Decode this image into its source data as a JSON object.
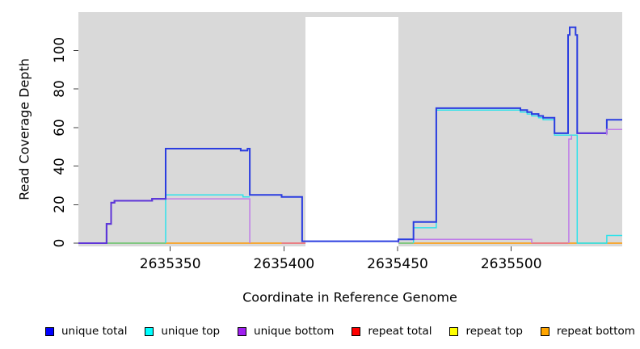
{
  "chart_data": {
    "type": "line",
    "subtype": "step-coverage",
    "title": "",
    "xlabel": "Coordinate in Reference Genome",
    "ylabel": "Read Coverage Depth",
    "xlim": [
      2635309.6,
      2635548.8
    ],
    "ylim": [
      0,
      119.8
    ],
    "x_ticks": [
      2635350,
      2635400,
      2635450,
      2635500
    ],
    "y_ticks": [
      0,
      20,
      40,
      60,
      80,
      100
    ],
    "grid": false,
    "legend_position": "bottom",
    "series": [
      {
        "name": "unique total",
        "color": "#0000FF",
        "points": [
          [
            2635310,
            0
          ],
          [
            2635322,
            10
          ],
          [
            2635324,
            21
          ],
          [
            2635326,
            22
          ],
          [
            2635342,
            23
          ],
          [
            2635348,
            49
          ],
          [
            2635381,
            48
          ],
          [
            2635384,
            49
          ],
          [
            2635385,
            25
          ],
          [
            2635399,
            24
          ],
          [
            2635408,
            1
          ],
          [
            2635450,
            2
          ],
          [
            2635457,
            11
          ],
          [
            2635467,
            70
          ],
          [
            2635504,
            69
          ],
          [
            2635507,
            68
          ],
          [
            2635509,
            67
          ],
          [
            2635512,
            66
          ],
          [
            2635514,
            65
          ],
          [
            2635519,
            57
          ],
          [
            2635525,
            112
          ],
          [
            2635529,
            57
          ],
          [
            2635542,
            64
          ],
          [
            2635549,
            64
          ]
        ]
      },
      {
        "name": "unique top",
        "color": "#00FFFF",
        "points": [
          [
            2635310,
            0
          ],
          [
            2635348,
            25
          ],
          [
            2635382,
            24
          ],
          [
            2635408,
            1
          ],
          [
            2635457,
            8
          ],
          [
            2635467,
            69
          ],
          [
            2635504,
            68
          ],
          [
            2635507,
            67
          ],
          [
            2635509,
            66
          ],
          [
            2635512,
            65
          ],
          [
            2635514,
            64
          ],
          [
            2635519,
            56
          ],
          [
            2635529,
            0
          ],
          [
            2635542,
            4
          ],
          [
            2635549,
            4
          ]
        ]
      },
      {
        "name": "unique bottom",
        "color": "#A020F0",
        "points": [
          [
            2635310,
            0
          ],
          [
            2635322,
            10
          ],
          [
            2635324,
            21
          ],
          [
            2635326,
            22
          ],
          [
            2635342,
            23
          ],
          [
            2635385,
            0
          ],
          [
            2635450,
            2
          ],
          [
            2635509,
            0
          ],
          [
            2635525,
            56
          ],
          [
            2635542,
            59
          ],
          [
            2635549,
            59
          ]
        ]
      },
      {
        "name": "repeat total",
        "color": "#FF0000",
        "points": [
          [
            2635310,
            0
          ],
          [
            2635549,
            0
          ]
        ]
      },
      {
        "name": "repeat top",
        "color": "#FFFF00",
        "points": [
          [
            2635310,
            0
          ],
          [
            2635549,
            0
          ]
        ]
      },
      {
        "name": "repeat bottom",
        "color": "#FFA500",
        "points": [
          [
            2635310,
            0
          ],
          [
            2635549,
            0
          ]
        ]
      }
    ]
  },
  "render": {
    "panel_shade_color": "#d9d9d9",
    "gap_region": [
      2635409.5,
      2635450.4
    ],
    "lines": [
      {
        "name": "baseline-green-left",
        "color": "#62c162",
        "w": 1.4,
        "pts": [
          [
            2635322,
            0
          ],
          [
            2635348,
            0
          ]
        ]
      },
      {
        "name": "baseline-orange-1",
        "color": "#ff9800",
        "w": 1.5,
        "pts": [
          [
            2635348,
            0
          ],
          [
            2635399,
            0
          ]
        ]
      },
      {
        "name": "baseline-red-1",
        "color": "#ef6168",
        "w": 1.5,
        "pts": [
          [
            2635399,
            0
          ],
          [
            2635409.5,
            0
          ]
        ]
      },
      {
        "name": "baseline-green-2",
        "color": "#62c162",
        "w": 1.4,
        "pts": [
          [
            2635450.4,
            0
          ],
          [
            2635457,
            0
          ]
        ]
      },
      {
        "name": "baseline-orange-2",
        "color": "#ff9800",
        "w": 1.5,
        "pts": [
          [
            2635457,
            0
          ],
          [
            2635509,
            0
          ]
        ]
      },
      {
        "name": "baseline-red-2",
        "color": "#ef6168",
        "w": 1.5,
        "pts": [
          [
            2635509,
            0
          ],
          [
            2635525,
            0
          ]
        ]
      },
      {
        "name": "baseline-orange-3",
        "color": "#ff9800",
        "w": 1.5,
        "pts": [
          [
            2635525,
            0
          ],
          [
            2635529,
            0
          ]
        ]
      },
      {
        "name": "baseline-green-3",
        "color": "#62c162",
        "w": 1.4,
        "pts": [
          [
            2635529,
            0
          ],
          [
            2635542,
            0
          ]
        ]
      },
      {
        "name": "baseline-orange-4",
        "color": "#ff9800",
        "w": 1.5,
        "pts": [
          [
            2635542,
            0
          ],
          [
            2635548.8,
            0
          ]
        ]
      },
      {
        "name": "unique-top-left",
        "color": "#2fe2ea",
        "w": 1.5,
        "pts": [
          [
            2635348,
            0
          ],
          [
            2635348,
            25
          ],
          [
            2635382,
            25
          ],
          [
            2635382,
            24
          ],
          [
            2635385,
            24
          ]
        ]
      },
      {
        "name": "unique-bottom-left",
        "color": "#bf7de8",
        "w": 1.5,
        "pts": [
          [
            2635348,
            23
          ],
          [
            2635385,
            23
          ],
          [
            2635385,
            0
          ]
        ]
      },
      {
        "name": "unique-bottom-mid",
        "color": "#bf7de8",
        "w": 1.5,
        "pts": [
          [
            2635450.4,
            0
          ],
          [
            2635450.4,
            2
          ],
          [
            2635509,
            2
          ],
          [
            2635509,
            0
          ]
        ]
      },
      {
        "name": "unique-top-right",
        "color": "#2fe2ea",
        "w": 1.5,
        "pts": [
          [
            2635457,
            0
          ],
          [
            2635457,
            8
          ],
          [
            2635467,
            8
          ],
          [
            2635467,
            69
          ],
          [
            2635504,
            69
          ],
          [
            2635504,
            68
          ],
          [
            2635507,
            68
          ],
          [
            2635507,
            67
          ],
          [
            2635509,
            67
          ],
          [
            2635509,
            66
          ],
          [
            2635512,
            66
          ],
          [
            2635512,
            65
          ],
          [
            2635514,
            65
          ],
          [
            2635514,
            64
          ],
          [
            2635519,
            64
          ],
          [
            2635519,
            56
          ],
          [
            2635529,
            56
          ],
          [
            2635529,
            0
          ],
          [
            2635542,
            0
          ],
          [
            2635542,
            4
          ],
          [
            2635548.8,
            4
          ]
        ]
      },
      {
        "name": "unique-bottom-spike",
        "color": "#bf7de8",
        "w": 1.5,
        "pts": [
          [
            2635525.3,
            0
          ],
          [
            2635525.3,
            54
          ],
          [
            2635526.5,
            54
          ],
          [
            2635526.5,
            56
          ]
        ]
      },
      {
        "name": "unique-total-main",
        "color": "#2b3de0",
        "w": 2,
        "pts": [
          [
            2635309.6,
            0
          ],
          [
            2635322,
            0
          ],
          [
            2635322,
            10
          ],
          [
            2635324,
            10
          ],
          [
            2635324,
            21
          ],
          [
            2635325.5,
            21
          ],
          [
            2635325.5,
            22
          ],
          [
            2635342,
            22
          ],
          [
            2635342,
            23
          ],
          [
            2635348,
            23
          ],
          [
            2635348,
            49
          ],
          [
            2635381,
            49
          ],
          [
            2635381,
            48
          ],
          [
            2635384,
            48
          ],
          [
            2635384,
            49
          ],
          [
            2635385,
            49
          ],
          [
            2635385,
            25
          ],
          [
            2635399,
            25
          ],
          [
            2635399,
            24
          ],
          [
            2635408,
            24
          ],
          [
            2635408,
            1
          ],
          [
            2635450.4,
            1
          ],
          [
            2635450.4,
            2
          ],
          [
            2635457,
            2
          ],
          [
            2635457,
            11
          ],
          [
            2635467,
            11
          ],
          [
            2635467,
            70
          ],
          [
            2635504,
            70
          ],
          [
            2635504,
            69
          ],
          [
            2635507,
            69
          ],
          [
            2635507,
            68
          ],
          [
            2635509,
            68
          ],
          [
            2635509,
            67
          ],
          [
            2635512,
            67
          ],
          [
            2635512,
            66
          ],
          [
            2635514,
            66
          ],
          [
            2635514,
            65
          ],
          [
            2635519,
            65
          ],
          [
            2635519,
            57
          ],
          [
            2635525,
            57
          ],
          [
            2635525,
            108
          ],
          [
            2635525.7,
            108
          ],
          [
            2635525.7,
            112
          ],
          [
            2635528.3,
            112
          ],
          [
            2635528.3,
            108
          ],
          [
            2635529,
            108
          ],
          [
            2635529,
            57
          ],
          [
            2635542,
            57
          ],
          [
            2635542,
            64
          ],
          [
            2635548.8,
            64
          ]
        ]
      },
      {
        "name": "blue-purple-overlap-rise",
        "color": "#5f35d8",
        "w": 2,
        "pts": [
          [
            2635309.6,
            0
          ],
          [
            2635322,
            0
          ],
          [
            2635322,
            10
          ],
          [
            2635324,
            10
          ],
          [
            2635324,
            21
          ],
          [
            2635325.5,
            21
          ],
          [
            2635325.5,
            22
          ],
          [
            2635342,
            22
          ],
          [
            2635342,
            23
          ],
          [
            2635348,
            23
          ]
        ]
      },
      {
        "name": "blue-purple-overlap-post-spike",
        "color": "#5f35d8",
        "w": 2,
        "pts": [
          [
            2635529,
            57
          ],
          [
            2635542,
            57
          ]
        ]
      },
      {
        "name": "unique-bottom-right",
        "color": "#bf7de8",
        "w": 1.5,
        "pts": [
          [
            2635542,
            56
          ],
          [
            2635542,
            59
          ],
          [
            2635548.8,
            59
          ]
        ]
      }
    ]
  },
  "axis": {
    "xlabel": "Coordinate in Reference Genome",
    "ylabel": "Read Coverage Depth"
  },
  "legend": {
    "items": [
      {
        "label": "unique total",
        "color": "#0000FF"
      },
      {
        "label": "unique top",
        "color": "#00FFFF"
      },
      {
        "label": "unique bottom",
        "color": "#A020F0"
      },
      {
        "label": "repeat total",
        "color": "#FF0000"
      },
      {
        "label": "repeat top",
        "color": "#FFFF00"
      },
      {
        "label": "repeat bottom",
        "color": "#FFA500"
      }
    ]
  }
}
